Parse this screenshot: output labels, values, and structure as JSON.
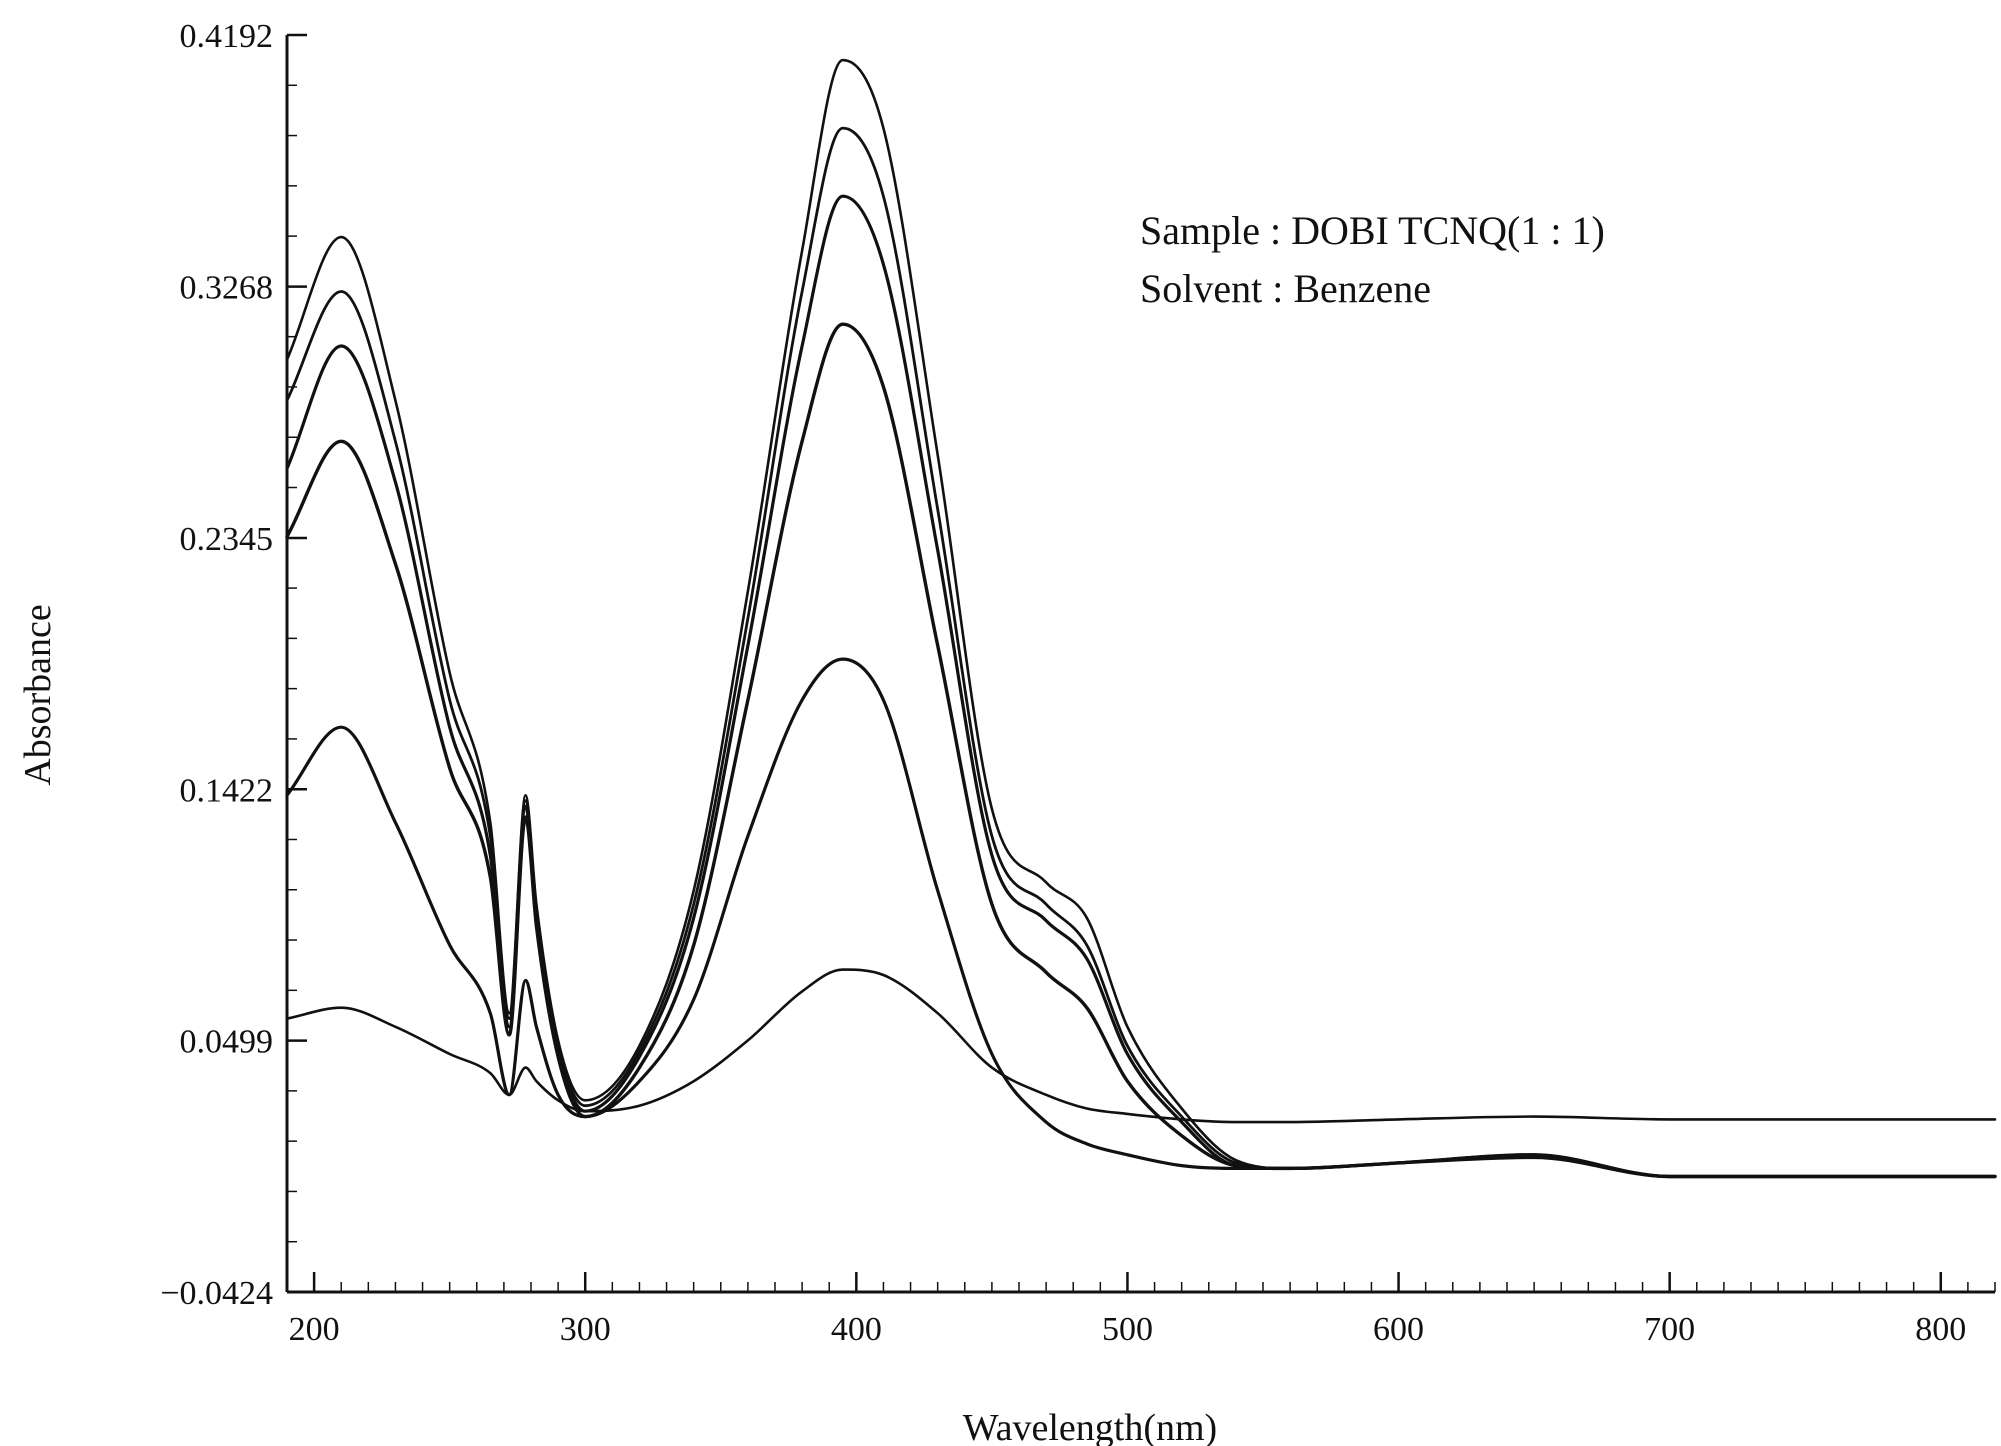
{
  "chart_data": {
    "type": "line",
    "xlabel": "Wavelength(nm)",
    "ylabel": "Absorbance",
    "xlim": [
      190,
      820
    ],
    "ylim": [
      -0.0424,
      0.4192
    ],
    "xticks": [
      200,
      300,
      400,
      500,
      600,
      700,
      800
    ],
    "yticks": [
      "0.4192",
      "0.3268",
      "0.2345",
      "0.1422",
      "0.0499",
      "−0.0424"
    ],
    "grid": false,
    "legend": "none",
    "annotations": [
      "Sample : DOBI TCNQ(1 : 1)",
      "Solvent : Benzene"
    ],
    "x": [
      190,
      210,
      230,
      250,
      265,
      272,
      278,
      282,
      290,
      300,
      320,
      340,
      360,
      380,
      395,
      410,
      430,
      450,
      470,
      485,
      500,
      520,
      540,
      560,
      600,
      650,
      700,
      800,
      820
    ],
    "series": [
      {
        "values": [
          0.3,
          0.345,
          0.285,
          0.185,
          0.13,
          0.06,
          0.14,
          0.1,
          0.05,
          0.028,
          0.048,
          0.105,
          0.215,
          0.34,
          0.41,
          0.385,
          0.265,
          0.135,
          0.108,
          0.095,
          0.055,
          0.025,
          0.006,
          0.003,
          0.005,
          0.008,
          0.0,
          0.0,
          0.0
        ]
      },
      {
        "values": [
          0.285,
          0.325,
          0.27,
          0.175,
          0.125,
          0.058,
          0.138,
          0.098,
          0.048,
          0.026,
          0.046,
          0.1,
          0.205,
          0.325,
          0.385,
          0.36,
          0.245,
          0.125,
          0.1,
          0.085,
          0.048,
          0.022,
          0.005,
          0.003,
          0.005,
          0.008,
          0.0,
          0.0,
          0.0
        ]
      },
      {
        "values": [
          0.26,
          0.305,
          0.255,
          0.165,
          0.118,
          0.055,
          0.136,
          0.095,
          0.046,
          0.024,
          0.044,
          0.095,
          0.195,
          0.305,
          0.36,
          0.335,
          0.23,
          0.118,
          0.094,
          0.08,
          0.045,
          0.02,
          0.004,
          0.003,
          0.005,
          0.008,
          0.0,
          0.0,
          0.0
        ]
      },
      {
        "values": [
          0.235,
          0.27,
          0.225,
          0.15,
          0.11,
          0.052,
          0.132,
          0.092,
          0.044,
          0.022,
          0.04,
          0.085,
          0.175,
          0.27,
          0.313,
          0.29,
          0.195,
          0.1,
          0.075,
          0.062,
          0.035,
          0.015,
          0.004,
          0.003,
          0.005,
          0.008,
          0.0,
          0.0,
          0.0
        ]
      },
      {
        "values": [
          0.14,
          0.165,
          0.13,
          0.085,
          0.06,
          0.03,
          0.072,
          0.055,
          0.03,
          0.022,
          0.035,
          0.065,
          0.125,
          0.175,
          0.19,
          0.175,
          0.105,
          0.045,
          0.02,
          0.012,
          0.008,
          0.004,
          0.003,
          0.003,
          0.005,
          0.007,
          0.0,
          0.0,
          0.0
        ]
      },
      {
        "values": [
          0.058,
          0.062,
          0.055,
          0.045,
          0.038,
          0.03,
          0.04,
          0.035,
          0.028,
          0.024,
          0.026,
          0.035,
          0.05,
          0.068,
          0.076,
          0.074,
          0.06,
          0.04,
          0.03,
          0.025,
          0.023,
          0.021,
          0.02,
          0.02,
          0.021,
          0.022,
          0.021,
          0.021,
          0.021
        ]
      }
    ]
  }
}
